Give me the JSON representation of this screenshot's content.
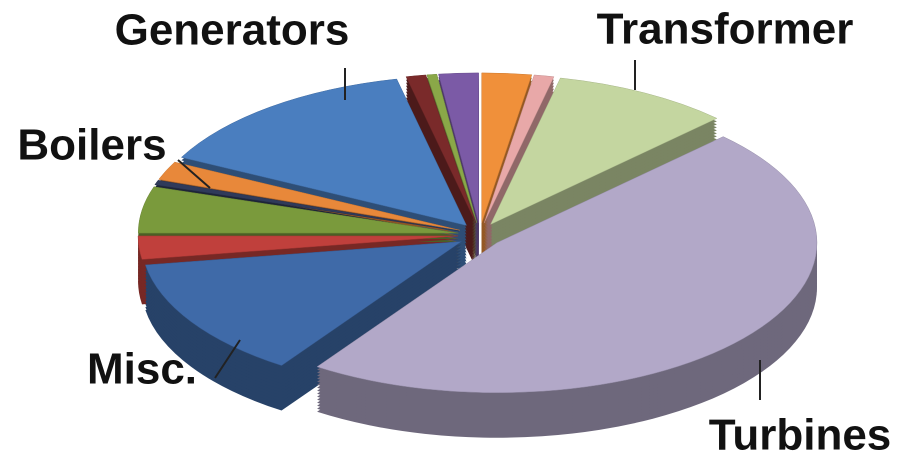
{
  "chart_data": {
    "type": "pie",
    "categories": [
      null,
      null,
      "Transformer",
      "Turbines",
      "Misc.",
      null,
      "Boilers",
      null,
      null,
      "Generators",
      null,
      null,
      null
    ],
    "values": [
      2.5,
      1,
      9,
      47,
      13,
      2.5,
      5,
      0.5,
      2,
      14,
      1,
      0.5,
      2
    ],
    "colors": [
      "#f0903a",
      "#e8a8a8",
      "#c4d6a0",
      "#b2a8c8",
      "#3f6aa8",
      "#c0403c",
      "#7a9a3c",
      "#2f3a5a",
      "#e8883a",
      "#4a7ebf",
      "#7a2a2a",
      "#8aa848",
      "#7b5aa6"
    ]
  }
}
